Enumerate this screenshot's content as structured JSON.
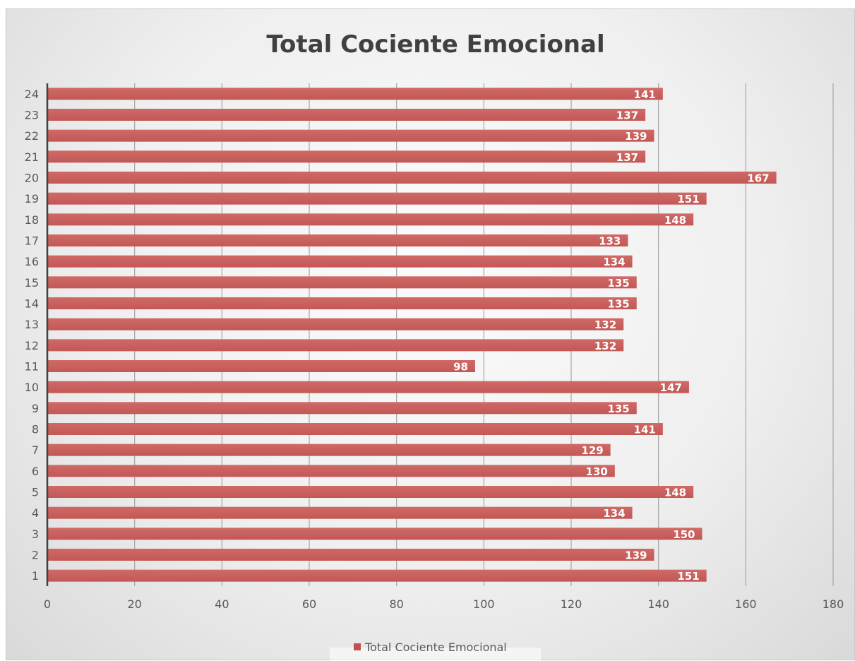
{
  "chart_data": {
    "type": "bar",
    "orientation": "horizontal",
    "title": "Total Cociente Emocional",
    "xlabel": "",
    "ylabel": "",
    "xlim": [
      0,
      180
    ],
    "x_ticks": [
      0,
      20,
      40,
      60,
      80,
      100,
      120,
      140,
      160,
      180
    ],
    "grid": true,
    "legend_position": "bottom",
    "categories": [
      "1",
      "2",
      "3",
      "4",
      "5",
      "6",
      "7",
      "8",
      "9",
      "10",
      "11",
      "12",
      "13",
      "14",
      "15",
      "16",
      "17",
      "18",
      "19",
      "20",
      "21",
      "22",
      "23",
      "24"
    ],
    "series": [
      {
        "name": "Total Cociente Emocional",
        "color": "#c0504d",
        "values": [
          151,
          139,
          150,
          134,
          148,
          130,
          129,
          141,
          135,
          147,
          98,
          132,
          132,
          135,
          135,
          134,
          133,
          148,
          151,
          167,
          137,
          139,
          137,
          141
        ]
      }
    ]
  }
}
